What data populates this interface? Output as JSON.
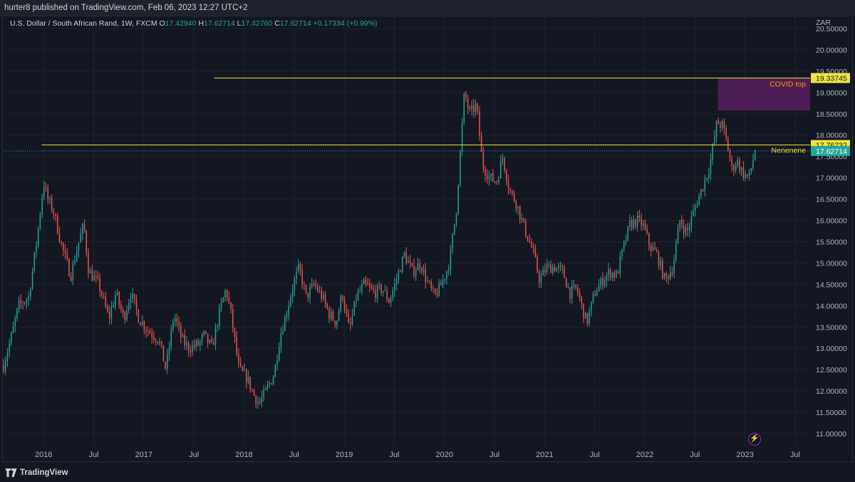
{
  "header": {
    "published_text": "hurter8 published on TradingView.com, Feb 06, 2023 12:27 UTC+2"
  },
  "legend": {
    "symbol": "U.S. Dollar / South African Rand, 1W, FXCM",
    "open_label": "O",
    "open_value": "17.42940",
    "high_label": "H",
    "high_value": "17.62714",
    "low_label": "L",
    "low_value": "17.42760",
    "close_label": "C",
    "close_value": "17.62714",
    "change": "+0.17334 (+0.99%)"
  },
  "footer": {
    "brand": "TradingView"
  },
  "colors": {
    "background": "#131722",
    "up": "#26a69a",
    "down": "#ef5350",
    "hline": "#f0e442",
    "zone": "#5b1f5e",
    "last_price": "#26a69a"
  },
  "chart_data": {
    "type": "candlestick",
    "title": "U.S. Dollar / South African Rand, 1W, FXCM",
    "y_unit": "ZAR",
    "ylim": [
      10.7,
      20.8
    ],
    "y_ticks": [
      11.0,
      11.5,
      12.0,
      12.5,
      13.0,
      13.5,
      14.0,
      14.5,
      15.0,
      15.5,
      16.0,
      16.5,
      17.0,
      17.5,
      18.0,
      18.5,
      19.0,
      19.5,
      20.0,
      20.5
    ],
    "y_tick_labels": [
      "11.00000",
      "11.50000",
      "12.00000",
      "12.50000",
      "13.00000",
      "13.50000",
      "14.00000",
      "14.50000",
      "15.00000",
      "15.50000",
      "16.00000",
      "16.50000",
      "17.00000",
      "17.50000",
      "18.00000",
      "18.50000",
      "19.00000",
      "19.50000",
      "20.00000",
      "20.50000"
    ],
    "x_labels": [
      {
        "label": "2016",
        "t": 2016.0
      },
      {
        "label": "Jul",
        "t": 2016.5
      },
      {
        "label": "2017",
        "t": 2017.0
      },
      {
        "label": "Jul",
        "t": 2017.5
      },
      {
        "label": "2018",
        "t": 2018.0
      },
      {
        "label": "Jul",
        "t": 2018.5
      },
      {
        "label": "2019",
        "t": 2019.0
      },
      {
        "label": "Jul",
        "t": 2019.5
      },
      {
        "label": "2020",
        "t": 2020.0
      },
      {
        "label": "Jul",
        "t": 2020.5
      },
      {
        "label": "2021",
        "t": 2021.0
      },
      {
        "label": "Jul",
        "t": 2021.5
      },
      {
        "label": "2022",
        "t": 2022.0
      },
      {
        "label": "Jul",
        "t": 2022.5
      },
      {
        "label": "2023",
        "t": 2023.0
      },
      {
        "label": "Jul",
        "t": 2023.5
      }
    ],
    "xlim": [
      2015.6,
      2023.65
    ],
    "anchors": [
      [
        2015.6,
        12.6
      ],
      [
        2015.68,
        13.3
      ],
      [
        2015.75,
        14.0
      ],
      [
        2015.85,
        14.2
      ],
      [
        2015.93,
        15.5
      ],
      [
        2016.0,
        16.9
      ],
      [
        2016.04,
        16.5
      ],
      [
        2016.1,
        16.2
      ],
      [
        2016.18,
        15.4
      ],
      [
        2016.27,
        14.7
      ],
      [
        2016.34,
        15.4
      ],
      [
        2016.4,
        15.9
      ],
      [
        2016.45,
        14.8
      ],
      [
        2016.55,
        14.5
      ],
      [
        2016.65,
        13.7
      ],
      [
        2016.72,
        14.3
      ],
      [
        2016.8,
        13.7
      ],
      [
        2016.87,
        14.3
      ],
      [
        2016.95,
        13.7
      ],
      [
        2017.05,
        13.4
      ],
      [
        2017.15,
        13.2
      ],
      [
        2017.22,
        12.5
      ],
      [
        2017.3,
        13.8
      ],
      [
        2017.38,
        13.2
      ],
      [
        2017.45,
        13.0
      ],
      [
        2017.55,
        13.1
      ],
      [
        2017.6,
        13.3
      ],
      [
        2017.68,
        13.0
      ],
      [
        2017.75,
        13.8
      ],
      [
        2017.82,
        14.4
      ],
      [
        2017.87,
        13.8
      ],
      [
        2017.95,
        12.5
      ],
      [
        2018.03,
        12.3
      ],
      [
        2018.1,
        11.9
      ],
      [
        2018.15,
        11.7
      ],
      [
        2018.22,
        12.0
      ],
      [
        2018.3,
        12.4
      ],
      [
        2018.36,
        13.3
      ],
      [
        2018.42,
        13.8
      ],
      [
        2018.48,
        14.4
      ],
      [
        2018.55,
        14.9
      ],
      [
        2018.62,
        14.2
      ],
      [
        2018.7,
        14.5
      ],
      [
        2018.78,
        14.2
      ],
      [
        2018.85,
        13.8
      ],
      [
        2018.92,
        13.6
      ],
      [
        2018.98,
        14.3
      ],
      [
        2019.05,
        13.4
      ],
      [
        2019.12,
        14.2
      ],
      [
        2019.2,
        14.5
      ],
      [
        2019.3,
        14.3
      ],
      [
        2019.38,
        14.4
      ],
      [
        2019.45,
        14.1
      ],
      [
        2019.52,
        14.6
      ],
      [
        2019.6,
        15.2
      ],
      [
        2019.68,
        14.8
      ],
      [
        2019.76,
        15.0
      ],
      [
        2019.82,
        14.6
      ],
      [
        2019.9,
        14.2
      ],
      [
        2019.97,
        14.5
      ],
      [
        2020.05,
        15.0
      ],
      [
        2020.12,
        16.3
      ],
      [
        2020.2,
        19.0
      ],
      [
        2020.25,
        18.5
      ],
      [
        2020.32,
        18.7
      ],
      [
        2020.38,
        17.3
      ],
      [
        2020.45,
        17.0
      ],
      [
        2020.52,
        16.9
      ],
      [
        2020.58,
        17.5
      ],
      [
        2020.65,
        16.7
      ],
      [
        2020.72,
        16.4
      ],
      [
        2020.8,
        15.8
      ],
      [
        2020.88,
        15.3
      ],
      [
        2020.95,
        14.6
      ],
      [
        2021.02,
        14.9
      ],
      [
        2021.1,
        14.9
      ],
      [
        2021.18,
        14.8
      ],
      [
        2021.25,
        14.3
      ],
      [
        2021.32,
        14.4
      ],
      [
        2021.38,
        13.9
      ],
      [
        2021.42,
        13.6
      ],
      [
        2021.5,
        14.3
      ],
      [
        2021.58,
        14.6
      ],
      [
        2021.65,
        14.8
      ],
      [
        2021.72,
        14.7
      ],
      [
        2021.78,
        15.3
      ],
      [
        2021.85,
        15.9
      ],
      [
        2021.92,
        16.0
      ],
      [
        2021.98,
        15.9
      ],
      [
        2022.05,
        15.4
      ],
      [
        2022.12,
        15.2
      ],
      [
        2022.2,
        14.6
      ],
      [
        2022.28,
        14.9
      ],
      [
        2022.35,
        16.0
      ],
      [
        2022.42,
        15.7
      ],
      [
        2022.5,
        16.3
      ],
      [
        2022.58,
        16.8
      ],
      [
        2022.65,
        17.3
      ],
      [
        2022.72,
        18.3
      ],
      [
        2022.78,
        18.2
      ],
      [
        2022.82,
        17.8
      ],
      [
        2022.87,
        17.2
      ],
      [
        2022.92,
        17.4
      ],
      [
        2022.98,
        17.1
      ],
      [
        2023.04,
        17.0
      ],
      [
        2023.1,
        17.63
      ]
    ],
    "last_close": 17.62714,
    "annotations": {
      "hline1": {
        "value": 19.33745,
        "label": "19.33745",
        "from_t": 2017.7
      },
      "hline2": {
        "value": 17.76732,
        "label": "17.76732",
        "from_t": 2015.98,
        "text": "Nenenene"
      },
      "last_price": {
        "value": 17.62714,
        "label": "17.62714"
      },
      "zone": {
        "from_t": 2022.73,
        "to_t": 2023.65,
        "top": 19.33745,
        "bottom": 18.58,
        "text": "COVID top"
      }
    }
  }
}
